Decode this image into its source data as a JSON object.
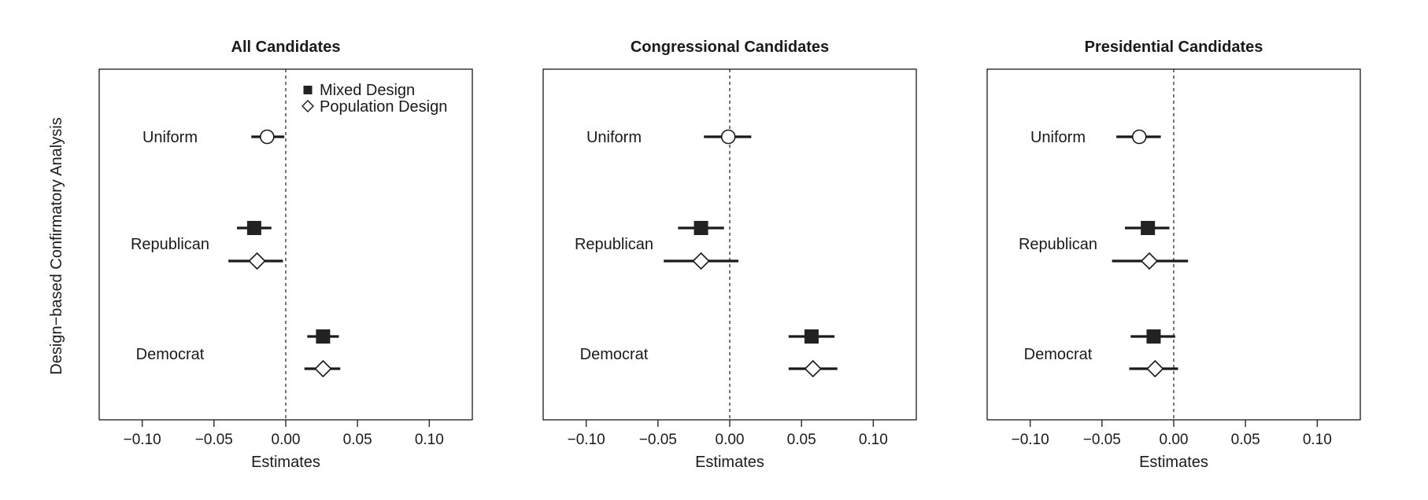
{
  "chart_data": [
    {
      "type": "scatter",
      "title": "All Candidates",
      "xlabel": "Estimates",
      "xlim": [
        -0.13,
        0.13
      ],
      "xticks": [
        "−0.10",
        "−0.05",
        "0.00",
        "0.05",
        "0.10"
      ],
      "xtick_values": [
        -0.1,
        -0.05,
        0.0,
        0.05,
        0.1
      ],
      "reference_line": 0,
      "categories": [
        "Uniform",
        "Republican",
        "Democrat"
      ],
      "points": [
        {
          "category": "Uniform",
          "design": "uniform",
          "estimate": -0.013,
          "ci": [
            -0.024,
            -0.001
          ]
        },
        {
          "category": "Republican",
          "design": "Mixed Design",
          "estimate": -0.022,
          "ci": [
            -0.034,
            -0.01
          ]
        },
        {
          "category": "Republican",
          "design": "Population Design",
          "estimate": -0.02,
          "ci": [
            -0.04,
            -0.002
          ]
        },
        {
          "category": "Democrat",
          "design": "Mixed Design",
          "estimate": 0.026,
          "ci": [
            0.015,
            0.037
          ]
        },
        {
          "category": "Democrat",
          "design": "Population Design",
          "estimate": 0.026,
          "ci": [
            0.013,
            0.038
          ]
        }
      ],
      "legend": [
        "Mixed Design",
        "Population Design"
      ]
    },
    {
      "type": "scatter",
      "title": "Congressional Candidates",
      "xlabel": "Estimates",
      "xlim": [
        -0.13,
        0.13
      ],
      "xticks": [
        "−0.10",
        "−0.05",
        "0.00",
        "0.05",
        "0.10"
      ],
      "xtick_values": [
        -0.1,
        -0.05,
        0.0,
        0.05,
        0.1
      ],
      "reference_line": 0,
      "categories": [
        "Uniform",
        "Republican",
        "Democrat"
      ],
      "points": [
        {
          "category": "Uniform",
          "design": "uniform",
          "estimate": -0.001,
          "ci": [
            -0.018,
            0.015
          ]
        },
        {
          "category": "Republican",
          "design": "Mixed Design",
          "estimate": -0.02,
          "ci": [
            -0.036,
            -0.004
          ]
        },
        {
          "category": "Republican",
          "design": "Population Design",
          "estimate": -0.02,
          "ci": [
            -0.046,
            0.006
          ]
        },
        {
          "category": "Democrat",
          "design": "Mixed Design",
          "estimate": 0.057,
          "ci": [
            0.041,
            0.073
          ]
        },
        {
          "category": "Democrat",
          "design": "Population Design",
          "estimate": 0.058,
          "ci": [
            0.041,
            0.075
          ]
        }
      ]
    },
    {
      "type": "scatter",
      "title": "Presidential Candidates",
      "xlabel": "Estimates",
      "xlim": [
        -0.13,
        0.13
      ],
      "xticks": [
        "−0.10",
        "−0.05",
        "0.00",
        "0.05",
        "0.10"
      ],
      "xtick_values": [
        -0.1,
        -0.05,
        0.0,
        0.05,
        0.1
      ],
      "reference_line": 0,
      "categories": [
        "Uniform",
        "Republican",
        "Democrat"
      ],
      "points": [
        {
          "category": "Uniform",
          "design": "uniform",
          "estimate": -0.024,
          "ci": [
            -0.04,
            -0.009
          ]
        },
        {
          "category": "Republican",
          "design": "Mixed Design",
          "estimate": -0.018,
          "ci": [
            -0.034,
            -0.003
          ]
        },
        {
          "category": "Republican",
          "design": "Population Design",
          "estimate": -0.017,
          "ci": [
            -0.043,
            0.01
          ]
        },
        {
          "category": "Democrat",
          "design": "Mixed Design",
          "estimate": -0.014,
          "ci": [
            -0.03,
            0.001
          ]
        },
        {
          "category": "Democrat",
          "design": "Population Design",
          "estimate": -0.013,
          "ci": [
            -0.031,
            0.003
          ]
        }
      ]
    }
  ],
  "figure": {
    "ylabel": "Design−based Confirmatory Analysis",
    "legend_items": {
      "mixed": "Mixed Design",
      "population": "Population Design"
    }
  },
  "colors": {
    "ink": "#1a1a1a",
    "marker_fill": "#222222",
    "background": "#ffffff"
  }
}
